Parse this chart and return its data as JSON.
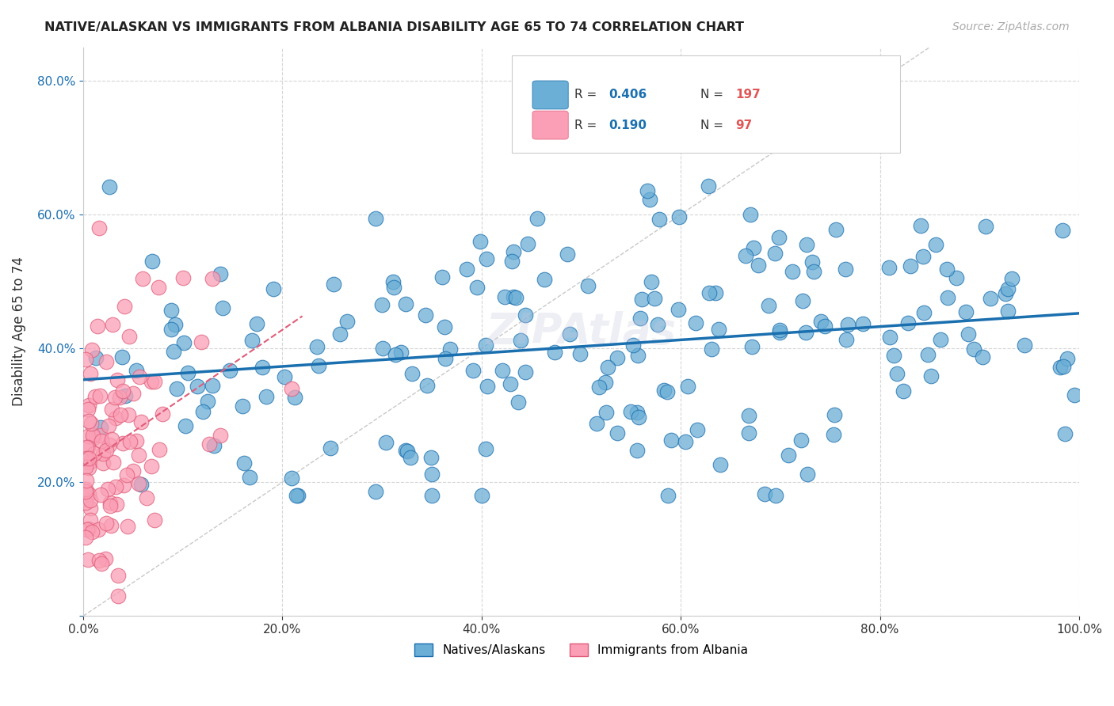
{
  "title": "NATIVE/ALASKAN VS IMMIGRANTS FROM ALBANIA DISABILITY AGE 65 TO 74 CORRELATION CHART",
  "source": "Source: ZipAtlas.com",
  "ylabel": "Disability Age 65 to 74",
  "xlim": [
    0,
    1.0
  ],
  "ylim": [
    0,
    0.85
  ],
  "xticks": [
    0.0,
    0.2,
    0.4,
    0.6,
    0.8,
    1.0
  ],
  "yticks": [
    0.0,
    0.2,
    0.4,
    0.6,
    0.8
  ],
  "xticklabels": [
    "0.0%",
    "20.0%",
    "40.0%",
    "60.0%",
    "80.0%",
    "100.0%"
  ],
  "yticklabels": [
    "",
    "20.0%",
    "40.0%",
    "60.0%",
    "80.0%"
  ],
  "blue_R": 0.406,
  "blue_N": 197,
  "pink_R": 0.19,
  "pink_N": 97,
  "blue_color": "#6baed6",
  "pink_color": "#fa9fb5",
  "blue_line_color": "#1a6faf",
  "pink_line_color": "#e05c7a",
  "legend_R_color": "#1a6faf",
  "legend_N_color": "#e05555",
  "background_color": "#ffffff",
  "grid_color": "#cccccc",
  "title_color": "#222222"
}
